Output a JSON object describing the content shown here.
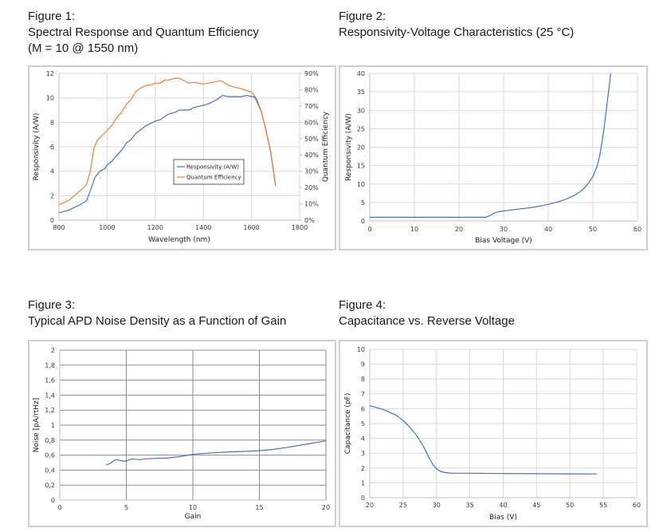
{
  "figures": [
    {
      "label": "Figure 1:",
      "title": "Spectral Response and Quantum Efficiency",
      "subtitle": "(M = 10 @ 1550 nm)"
    },
    {
      "label": "Figure 2:",
      "title": "Responsivity-Voltage Characteristics (25 °C)"
    },
    {
      "label": "Figure 3:",
      "title": "Typical APD Noise Density as a Function of Gain"
    },
    {
      "label": "Figure 4:",
      "title": "Capacitance vs. Reverse Voltage"
    }
  ],
  "colors": {
    "blue": "#4472c4",
    "orange": "#ed7d31",
    "grid_light": "#d9d9d9",
    "grid_dark": "#8c8c8c",
    "frame": "#d0d0d0"
  },
  "chart_data": [
    {
      "type": "line",
      "title": "Spectral Response and Quantum Efficiency",
      "xlabel": "Wavelength (nm)",
      "ylabel": "Responsivity (A/W)",
      "y2label": "Quantum Efficiency",
      "xlim": [
        800,
        1800
      ],
      "ylim": [
        0,
        12
      ],
      "y2lim": [
        0,
        90
      ],
      "xticks": [
        "800",
        "1000",
        "1200",
        "1400",
        "1600",
        "1800"
      ],
      "yticks": [
        "0",
        "2",
        "4",
        "6",
        "8",
        "10",
        "12"
      ],
      "y2ticks": [
        "0%",
        "10%",
        "20%",
        "30%",
        "40%",
        "50%",
        "60%",
        "70%",
        "80%",
        "90%"
      ],
      "grid": true,
      "legend": {
        "position": "center-right",
        "entries": [
          "Responsivity (A/W)",
          "Quantum Efficiency"
        ]
      },
      "series": [
        {
          "name": "Responsivity (A/W)",
          "axis": "left",
          "color": "#4472c4",
          "x": [
            800,
            840,
            880,
            900,
            915,
            930,
            950,
            970,
            990,
            1000,
            1020,
            1040,
            1060,
            1080,
            1100,
            1120,
            1140,
            1160,
            1180,
            1200,
            1220,
            1240,
            1260,
            1280,
            1300,
            1340,
            1360,
            1380,
            1400,
            1420,
            1440,
            1460,
            1480,
            1500,
            1520,
            1560,
            1580,
            1600,
            1610,
            1620,
            1640,
            1660,
            1680,
            1700
          ],
          "y": [
            0.6,
            0.8,
            1.2,
            1.4,
            1.6,
            2.4,
            3.5,
            4.0,
            4.2,
            4.5,
            4.8,
            5.3,
            5.7,
            6.3,
            6.6,
            7.1,
            7.4,
            7.7,
            7.9,
            8.1,
            8.2,
            8.5,
            8.7,
            8.8,
            9.0,
            9.0,
            9.2,
            9.3,
            9.4,
            9.5,
            9.7,
            9.9,
            10.2,
            10.1,
            10.1,
            10.1,
            10.2,
            10.1,
            10.1,
            9.8,
            8.9,
            7.4,
            5.5,
            2.8
          ]
        },
        {
          "name": "Quantum Efficiency",
          "axis": "right",
          "color": "#ed7d31",
          "x": [
            800,
            840,
            880,
            900,
            915,
            930,
            945,
            960,
            980,
            1000,
            1020,
            1040,
            1060,
            1080,
            1100,
            1120,
            1140,
            1160,
            1180,
            1200,
            1220,
            1240,
            1260,
            1280,
            1300,
            1340,
            1360,
            1400,
            1440,
            1470,
            1480,
            1500,
            1520,
            1560,
            1600,
            1620,
            1640,
            1660,
            1680,
            1700
          ],
          "y": [
            9.5,
            12,
            17,
            19.5,
            22,
            30,
            44,
            49,
            52,
            55,
            58,
            63,
            66,
            71,
            74,
            79,
            81,
            82.5,
            83,
            84,
            84,
            86,
            86,
            87,
            87,
            84,
            84.5,
            83.5,
            84.5,
            85.5,
            85,
            83,
            82,
            80.5,
            78.5,
            75,
            67,
            55,
            42,
            21
          ]
        }
      ]
    },
    {
      "type": "line",
      "title": "Responsivity-Voltage Characteristics (25 °C)",
      "xlabel": "Bias Voltage (V)",
      "ylabel": "Responsivity (A/W)",
      "xlim": [
        0,
        60
      ],
      "ylim": [
        0,
        40
      ],
      "xticks": [
        "0",
        "10",
        "20",
        "30",
        "40",
        "50",
        "60"
      ],
      "yticks": [
        "0",
        "5",
        "10",
        "15",
        "20",
        "25",
        "30",
        "35",
        "40"
      ],
      "grid": true,
      "series": [
        {
          "name": "Responsivity",
          "color": "#4472c4",
          "x": [
            0,
            10,
            20,
            26,
            27,
            28,
            29,
            30,
            32,
            34,
            36,
            38,
            40,
            42,
            44,
            46,
            47,
            48,
            49,
            50,
            51,
            51.5,
            52,
            52.5,
            53,
            53.3,
            53.6,
            53.8,
            54
          ],
          "y": [
            1,
            1,
            1,
            1,
            1.5,
            2.2,
            2.5,
            2.7,
            3.0,
            3.3,
            3.6,
            4.0,
            4.5,
            5.1,
            5.9,
            7.0,
            7.8,
            8.8,
            10.2,
            12,
            15,
            17.5,
            21,
            25,
            30,
            33,
            36,
            38,
            40
          ]
        }
      ]
    },
    {
      "type": "line",
      "title": "Typical APD Noise Density as a Function of Gain",
      "xlabel": "Gain",
      "ylabel": "Noise [pA/rtHz]",
      "xlim": [
        0,
        20
      ],
      "ylim": [
        0,
        2
      ],
      "xticks": [
        "0",
        "5",
        "10",
        "15",
        "20"
      ],
      "yticks": [
        "0",
        "0,2",
        "0,4",
        "0,6",
        "0,8",
        "1",
        "1,2",
        "1,4",
        "1,6",
        "1,8",
        "2"
      ],
      "grid": true,
      "series": [
        {
          "name": "Noise",
          "color": "#4472c4",
          "x": [
            3.5,
            3.8,
            4.2,
            4.5,
            4.8,
            5.0,
            5.4,
            5.7,
            6.0,
            6.5,
            7,
            8,
            9,
            10,
            11,
            12,
            13,
            14,
            15,
            16,
            17,
            18,
            19,
            20
          ],
          "y": [
            0.47,
            0.49,
            0.54,
            0.53,
            0.52,
            0.52,
            0.55,
            0.545,
            0.54,
            0.55,
            0.555,
            0.56,
            0.58,
            0.61,
            0.625,
            0.635,
            0.645,
            0.65,
            0.66,
            0.675,
            0.7,
            0.73,
            0.76,
            0.79
          ]
        }
      ]
    },
    {
      "type": "line",
      "title": "Capacitance vs. Reverse Voltage",
      "xlabel": "Bias (V)",
      "ylabel": "Capacitance (pF)",
      "xlim": [
        20,
        60
      ],
      "ylim": [
        0,
        10
      ],
      "xticks": [
        "20",
        "25",
        "30",
        "35",
        "40",
        "45",
        "50",
        "55",
        "60"
      ],
      "yticks": [
        "0",
        "1",
        "2",
        "3",
        "4",
        "5",
        "6",
        "7",
        "8",
        "9",
        "10"
      ],
      "grid": true,
      "series": [
        {
          "name": "Capacitance",
          "color": "#4472c4",
          "x": [
            20,
            22,
            24,
            25,
            26,
            27,
            28,
            28.5,
            29,
            29.5,
            30,
            30.5,
            31,
            32,
            33,
            35,
            40,
            45,
            50,
            54
          ],
          "y": [
            6.2,
            5.95,
            5.55,
            5.2,
            4.75,
            4.2,
            3.5,
            3.05,
            2.6,
            2.2,
            1.95,
            1.8,
            1.72,
            1.66,
            1.65,
            1.65,
            1.63,
            1.62,
            1.61,
            1.6
          ]
        }
      ]
    }
  ]
}
